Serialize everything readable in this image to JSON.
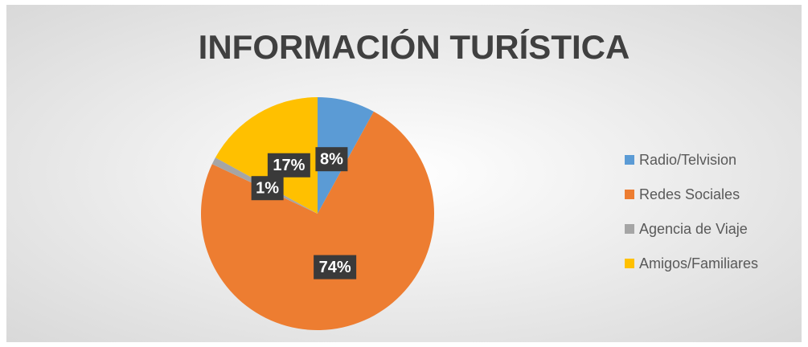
{
  "chart_data": {
    "type": "pie",
    "title": "INFORMACIÓN TURÍSTICA",
    "categories": [
      "Radio/Telvision",
      "Redes Sociales",
      "Agencia de Viaje",
      "Amigos/Familiares"
    ],
    "values": [
      8,
      74,
      1,
      17
    ],
    "value_labels": [
      "8%",
      "74%",
      "1%",
      "17%"
    ],
    "colors": [
      "#5b9bd5",
      "#ed7d31",
      "#a5a5a5",
      "#ffc000"
    ],
    "legend": "right"
  }
}
